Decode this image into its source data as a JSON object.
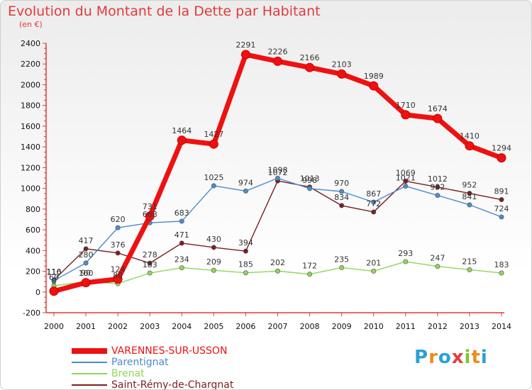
{
  "header": {
    "title": "Evolution du Montant de la Dette par Habitant",
    "subtitle": "(en €)"
  },
  "logo": {
    "text": "Proxiti",
    "letters": [
      "P",
      "r",
      "o",
      "x",
      "i",
      "t",
      "i"
    ],
    "colors": [
      "#2aa0d8",
      "#f08c1a",
      "#2aa0d8",
      "#e63c3c",
      "#7ec242",
      "#f08c1a",
      "#2aa0d8"
    ]
  },
  "chart_data": {
    "type": "line",
    "title": "Evolution du Montant de la Dette par Habitant",
    "subtitle": "(en €)",
    "x": [
      "2000",
      "2001",
      "2002",
      "2003",
      "2004",
      "2005",
      "2006",
      "2007",
      "2008",
      "2009",
      "2010",
      "2011",
      "2012",
      "2013",
      "2014"
    ],
    "ylim": [
      -200,
      2400
    ],
    "yticks": [
      -200,
      0,
      200,
      400,
      600,
      800,
      1000,
      1200,
      1400,
      1600,
      1800,
      2000,
      2200,
      2400
    ],
    "grid": false,
    "legend": "bottom-left",
    "series": [
      {
        "name": "VARENNES-SUR-USSON",
        "color": "#ee1111",
        "values": [
          8,
          90,
          124,
          731,
          1464,
          1427,
          2291,
          2226,
          2166,
          2103,
          1989,
          1710,
          1674,
          1410,
          1294
        ]
      },
      {
        "name": "Parentignat",
        "color": "#4a8ccc",
        "values": [
          110,
          280,
          620,
          668,
          683,
          1025,
          974,
          1098,
          998,
          970,
          867,
          1021,
          932,
          841,
          724
        ]
      },
      {
        "name": "Brenat",
        "color": "#8fd65a",
        "values": [
          60,
          100,
          80,
          183,
          234,
          209,
          185,
          202,
          172,
          235,
          201,
          293,
          247,
          215,
          183
        ]
      },
      {
        "name": "Saint-Rémy-de-Chargnat",
        "color": "#7a1f22",
        "values": [
          116,
          417,
          376,
          278,
          471,
          430,
          394,
          1072,
          1013,
          834,
          772,
          1069,
          1012,
          952,
          891
        ]
      }
    ]
  }
}
